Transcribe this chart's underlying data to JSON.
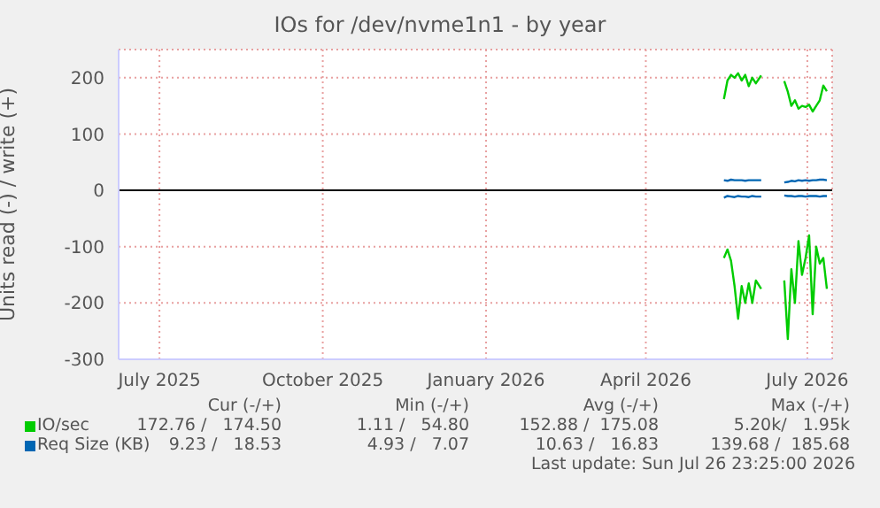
{
  "chart_data": {
    "type": "line",
    "title": "IOs for /dev/nvme1n1 - by year",
    "ylabel": "Units read (-) / write (+)",
    "x": [
      "2026-05-15",
      "2026-05-17",
      "2026-05-19",
      "2026-05-21",
      "2026-05-23",
      "2026-05-25",
      "2026-05-27",
      "2026-05-29",
      "2026-05-31",
      "2026-06-02",
      "2026-06-05",
      "2026-06-10",
      "2026-06-18",
      "2026-06-20",
      "2026-06-22",
      "2026-06-24",
      "2026-06-26",
      "2026-06-28",
      "2026-06-30",
      "2026-07-02",
      "2026-07-04",
      "2026-07-06",
      "2026-07-08",
      "2026-07-10",
      "2026-07-12"
    ],
    "series": [
      {
        "name": "IO/sec",
        "color": "#00cc00",
        "values": [
          162,
          195,
          205,
          200,
          208,
          195,
          205,
          185,
          200,
          190,
          204,
          null,
          194,
          175,
          150,
          160,
          145,
          150,
          148,
          152,
          140,
          150,
          160,
          186,
          176
        ]
      },
      {
        "color": "#00cc00",
        "values": [
          -120,
          -105,
          -125,
          -170,
          -228,
          -170,
          -200,
          -165,
          -200,
          -160,
          -175,
          null,
          -160,
          -264,
          -140,
          -200,
          -90,
          -150,
          -120,
          -80,
          -220,
          -100,
          -130,
          -120,
          -175
        ]
      },
      {
        "name": "Req Size (KB)",
        "color": "#0066b3",
        "values": [
          18,
          17,
          19,
          18,
          18,
          18,
          17,
          18,
          18,
          18,
          18,
          null,
          14,
          15,
          17,
          16,
          18,
          17,
          18,
          17,
          18,
          18,
          19,
          19,
          18
        ]
      },
      {
        "color": "#0066b3",
        "values": [
          -13,
          -10,
          -11,
          -12,
          -10,
          -11,
          -11,
          -12,
          -10,
          -11,
          -11,
          null,
          -9,
          -10,
          -10,
          -11,
          -10,
          -10,
          -11,
          -10,
          -10,
          -10,
          -11,
          -10,
          -10
        ]
      }
    ],
    "xlim": [
      "2025-06-08",
      "2026-07-15"
    ],
    "xticks": [
      {
        "value": "2025-07-01",
        "label": "July 2025"
      },
      {
        "value": "2025-10-01",
        "label": "October 2025"
      },
      {
        "value": "2026-01-01",
        "label": "January 2026"
      },
      {
        "value": "2026-04-01",
        "label": "April 2026"
      },
      {
        "value": "2026-07-01",
        "label": "July 2026"
      }
    ],
    "ylim": [
      -300,
      250
    ],
    "yticks": [
      -300,
      -200,
      -100,
      0,
      100,
      200
    ],
    "ref_lines": [
      {
        "axis": "y",
        "value": 0,
        "color": "#000000"
      }
    ],
    "grid": true,
    "legend": "bottom",
    "marker": "none",
    "line_style": "solid",
    "annotations": [
      "Cur (-/+)",
      "Min (-/+)",
      "Avg (-/+)",
      "Max (-/+)",
      "172.76 /   174.50",
      "1.11 /   54.80",
      "152.88 /  175.08",
      "5.20k/   1.95k",
      "9.23 /   18.53",
      "4.93 /   7.07",
      "10.63 /   16.83",
      "139.68 /  185.68",
      "Last update: Sun Jul 26 23:25:00 2026"
    ]
  }
}
